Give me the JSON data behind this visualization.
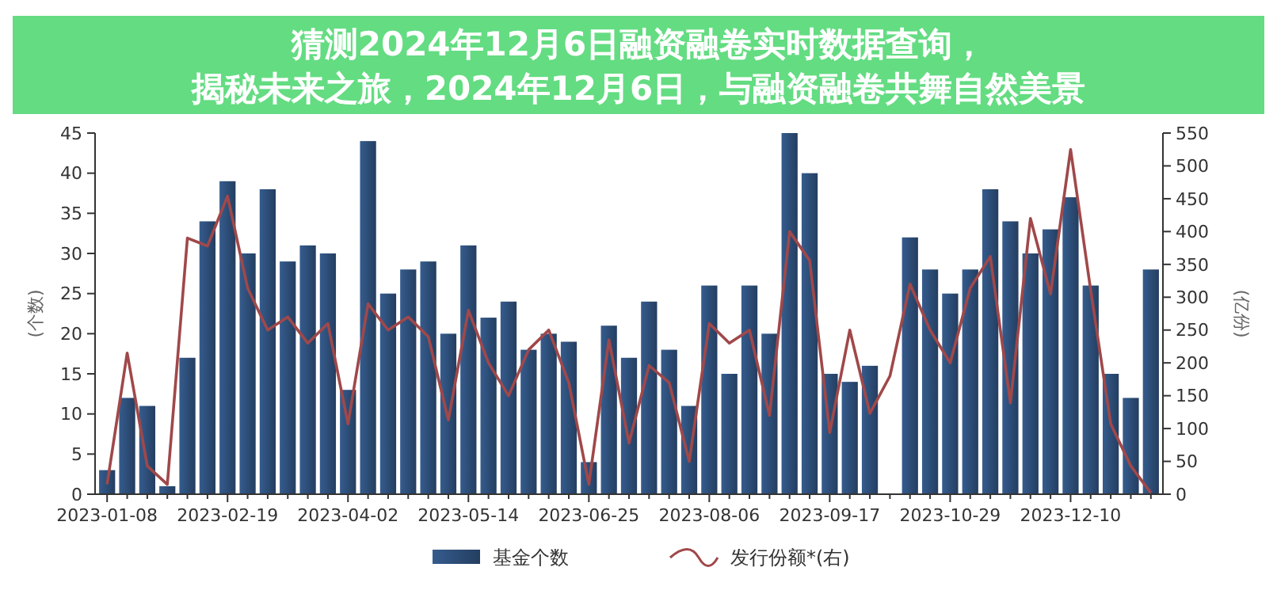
{
  "chart_data": {
    "type": "bar",
    "title": "猜测2024年12月6日融资融卷实时数据查询，揭秘未来之旅，2024年12月6日，与融资融卷共舞自然美景",
    "ylabel": "(个数)",
    "y2label": "(亿份)",
    "categories": [
      "2023-01-08",
      null,
      null,
      null,
      null,
      null,
      "2023-02-19",
      null,
      null,
      null,
      null,
      null,
      "2023-04-02",
      null,
      null,
      null,
      null,
      null,
      "2023-05-14",
      null,
      null,
      null,
      null,
      null,
      "2023-06-25",
      null,
      null,
      null,
      null,
      null,
      "2023-08-06",
      null,
      null,
      null,
      null,
      null,
      "2023-09-17",
      null,
      null,
      null,
      null,
      null,
      "2023-10-29",
      null,
      null,
      null,
      null,
      null,
      "2023-12-10",
      null,
      null,
      null,
      null
    ],
    "series": [
      {
        "name": "基金个数",
        "color": "#2b4a73",
        "values": [
          3,
          12,
          11,
          1,
          17,
          34,
          39,
          30,
          38,
          29,
          31,
          30,
          13,
          44,
          25,
          28,
          29,
          20,
          31,
          22,
          24,
          18,
          20,
          19,
          4,
          21,
          17,
          24,
          18,
          11,
          26,
          15,
          26,
          20,
          45,
          40,
          15,
          14,
          16,
          0,
          32,
          28,
          25,
          28,
          38,
          34,
          30,
          33,
          37,
          26,
          15,
          12,
          28
        ]
      },
      {
        "name": "发行份额*(右)",
        "type": "line",
        "axis": "y2",
        "color": "#a0484a",
        "values": [
          15,
          215,
          43,
          15,
          390,
          378,
          454,
          314,
          250,
          270,
          230,
          260,
          107,
          290,
          250,
          270,
          240,
          113,
          280,
          200,
          150,
          220,
          250,
          170,
          15,
          235,
          78,
          196,
          170,
          50,
          260,
          230,
          250,
          120,
          400,
          356,
          94,
          250,
          123,
          180,
          320,
          250,
          200,
          314,
          362,
          139,
          420,
          305,
          525,
          311,
          107,
          43,
          2
        ]
      }
    ],
    "ylim": [
      0,
      45
    ],
    "yticks": [
      0,
      5,
      10,
      15,
      20,
      25,
      30,
      35,
      40,
      45
    ],
    "y2lim": [
      0,
      550
    ],
    "y2ticks": [
      0,
      50,
      100,
      150,
      200,
      250,
      300,
      350,
      400,
      450,
      500,
      550
    ],
    "legend": "bottom"
  }
}
